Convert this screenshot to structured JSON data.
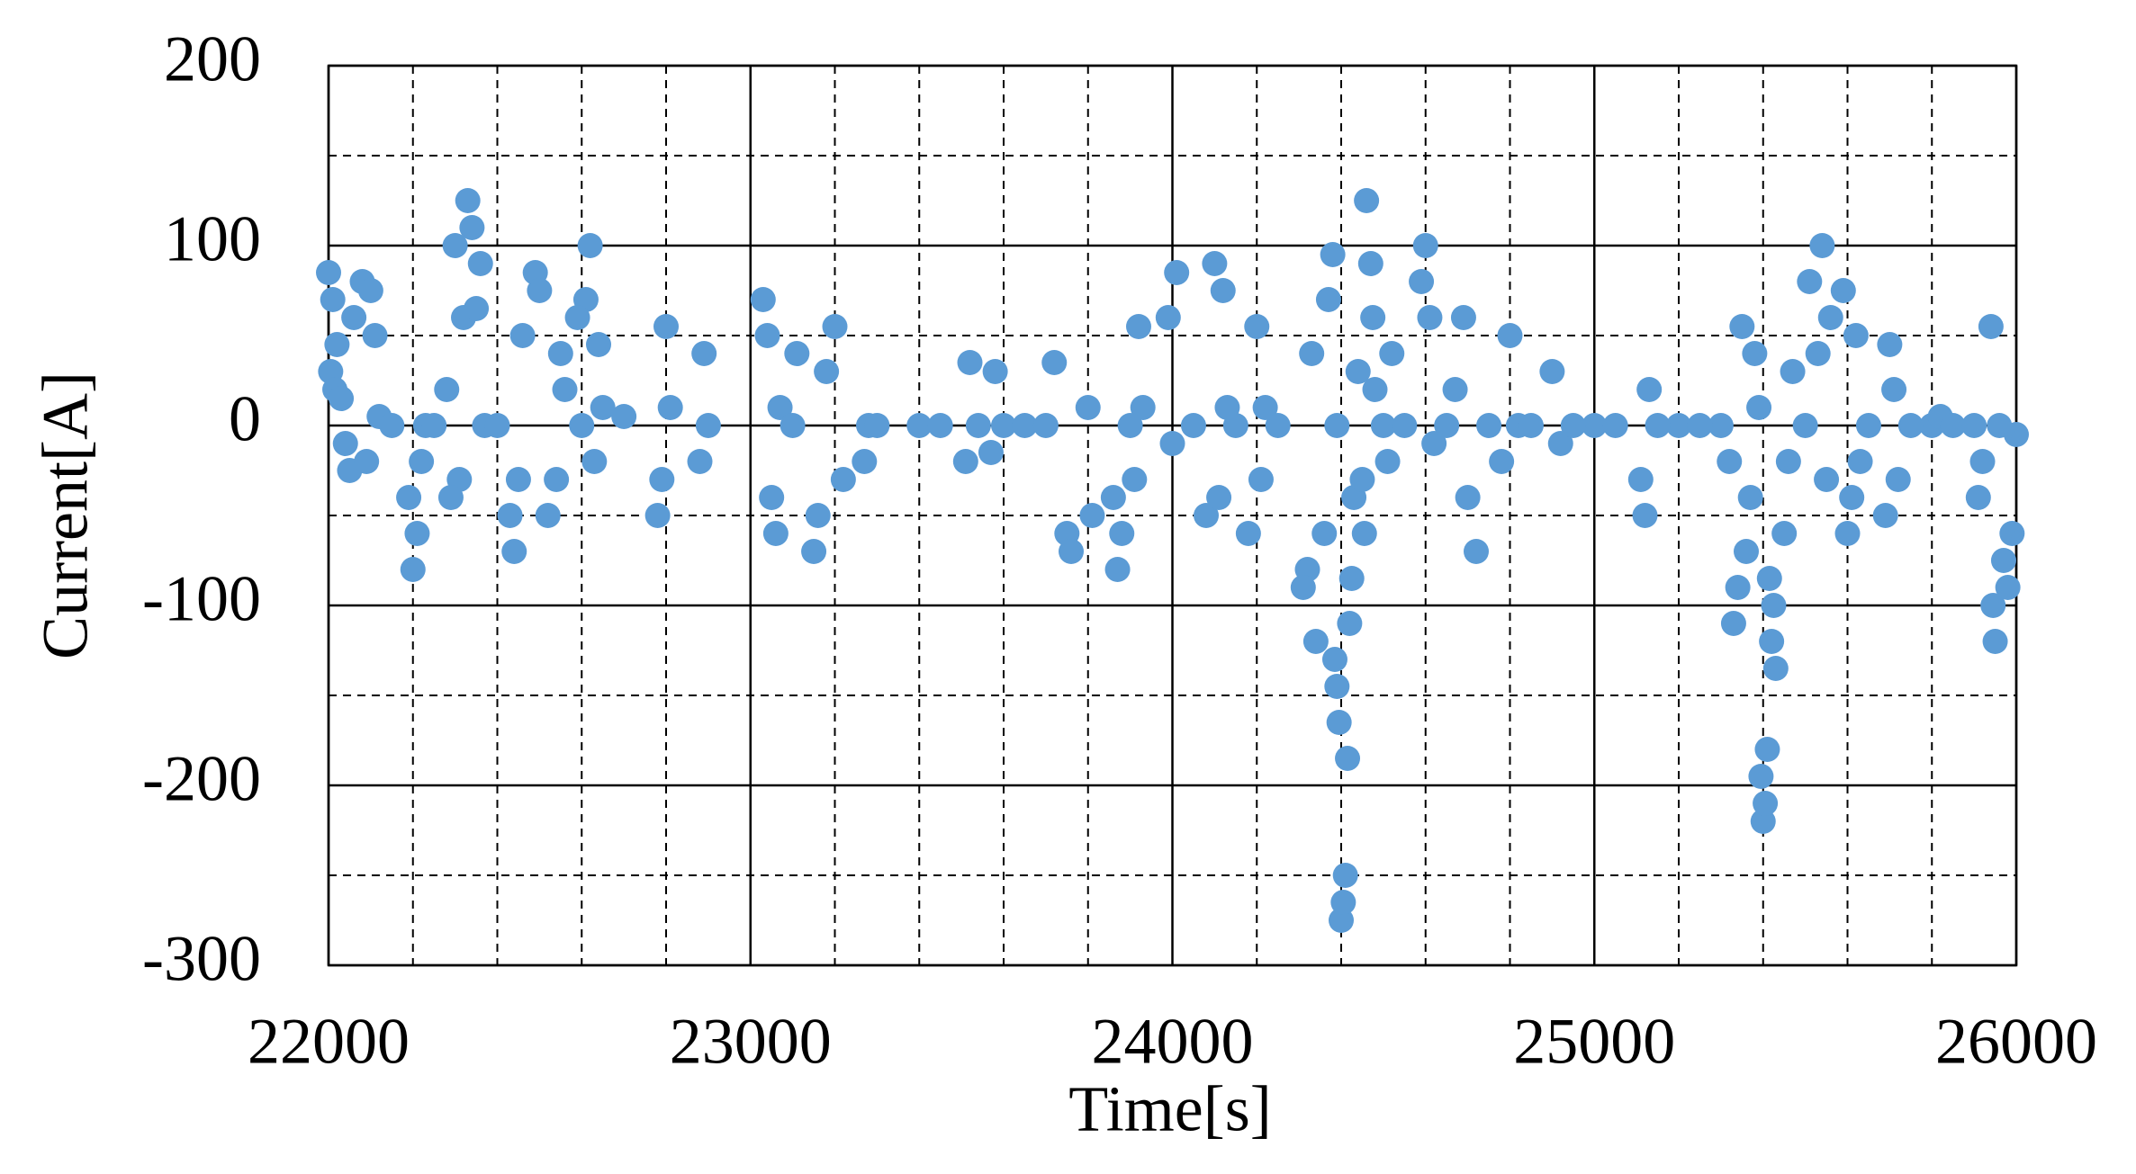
{
  "chart_data": {
    "type": "scatter",
    "xlabel": "Time[s]",
    "ylabel": "Current[A]",
    "xlim": [
      22000,
      26000
    ],
    "xticks": [
      22000,
      23000,
      24000,
      25000,
      26000
    ],
    "ylim": [
      -300,
      200
    ],
    "yticks": [
      -300,
      -200,
      -100,
      0,
      100,
      200
    ],
    "x_minor_ticks": [
      22200,
      22400,
      22600,
      22800,
      23200,
      23400,
      23600,
      23800,
      24200,
      24400,
      24600,
      24800,
      25200,
      25400,
      25600,
      25800
    ],
    "y_minor_ticks": [
      -250,
      -150,
      -50,
      50,
      150
    ],
    "grid": true,
    "color": "#5b9bd5",
    "x": [
      22000,
      22010,
      22020,
      22005,
      22015,
      22030,
      22040,
      22050,
      22060,
      22080,
      22100,
      22110,
      22090,
      22120,
      22200,
      22210,
      22190,
      22220,
      22230,
      22280,
      22300,
      22330,
      22340,
      22320,
      22310,
      22290,
      22360,
      22350,
      22370,
      22440,
      22430,
      22450,
      22460,
      22490,
      22500,
      22520,
      22540,
      22550,
      22560,
      22620,
      22610,
      22590,
      22640,
      22630,
      22650,
      22700,
      22800,
      22780,
      22790,
      22810,
      22890,
      22880,
      23030,
      23040,
      23050,
      23060,
      23070,
      23110,
      23150,
      23160,
      23180,
      23200,
      23220,
      23280,
      23270,
      23400,
      23520,
      23510,
      23540,
      23580,
      23570,
      23720,
      23750,
      23760,
      23800,
      23810,
      23870,
      23880,
      23860,
      23920,
      23910,
      23930,
      24010,
      23990,
      24000,
      24050,
      24080,
      24100,
      24120,
      24110,
      24130,
      24200,
      24180,
      24210,
      24220,
      24330,
      24320,
      24340,
      24310,
      24380,
      24370,
      24360,
      24390,
      24400,
      24405,
      24410,
      24415,
      24395,
      24390,
      24385,
      24420,
      24425,
      24430,
      24440,
      24460,
      24470,
      24475,
      24480,
      24455,
      24450,
      24520,
      24500,
      24510,
      24600,
      24590,
      24610,
      24620,
      24690,
      24670,
      24700,
      24720,
      24800,
      24780,
      24820,
      24900,
      24920,
      25000,
      25130,
      25120,
      25110,
      25200,
      25300,
      25320,
      25350,
      25330,
      25340,
      25360,
      25370,
      25400,
      25405,
      25395,
      25410,
      25430,
      25420,
      25425,
      25415,
      25380,
      25390,
      25450,
      25460,
      25470,
      25540,
      25510,
      25560,
      25530,
      25550,
      25590,
      25620,
      25600,
      25610,
      25630,
      25700,
      25710,
      25690,
      25720,
      25800,
      25820,
      25940,
      25920,
      25910,
      25950,
      25945,
      25980,
      25970,
      25990,
      25960,
      26000,
      22150,
      22250,
      22400,
      22600,
      22900,
      23100,
      23300,
      23450,
      23600,
      23650,
      23700,
      23900,
      24150,
      24250,
      24550,
      24650,
      24750,
      24850,
      24950,
      25050,
      25150,
      25250,
      25500,
      25650,
      25750,
      25850,
      25900
    ],
    "values": [
      85,
      70,
      45,
      30,
      20,
      15,
      -10,
      -25,
      60,
      80,
      75,
      50,
      -20,
      5,
      -80,
      -60,
      -40,
      -20,
      0,
      20,
      100,
      125,
      110,
      60,
      -30,
      -40,
      90,
      65,
      0,
      -70,
      -50,
      -30,
      50,
      85,
      75,
      -50,
      -30,
      40,
      20,
      100,
      70,
      60,
      45,
      -20,
      10,
      5,
      55,
      -50,
      -30,
      10,
      40,
      -20,
      70,
      50,
      -40,
      -60,
      10,
      40,
      -70,
      -50,
      30,
      55,
      -30,
      0,
      -20,
      0,
      35,
      -20,
      0,
      30,
      -15,
      35,
      -60,
      -70,
      10,
      -50,
      -80,
      -60,
      -40,
      55,
      -30,
      10,
      85,
      60,
      -10,
      0,
      -50,
      90,
      75,
      -40,
      10,
      55,
      -60,
      -30,
      10,
      40,
      -80,
      -120,
      -90,
      95,
      70,
      -60,
      0,
      -275,
      -265,
      -250,
      -185,
      -165,
      -145,
      -130,
      -110,
      -85,
      -40,
      30,
      125,
      90,
      60,
      20,
      -60,
      -30,
      40,
      0,
      -20,
      100,
      80,
      60,
      -10,
      60,
      20,
      -40,
      -70,
      50,
      -20,
      0,
      30,
      -10,
      0,
      20,
      -50,
      -30,
      0,
      0,
      -20,
      55,
      -110,
      -90,
      -70,
      -40,
      -220,
      -210,
      -195,
      -180,
      -135,
      -120,
      -100,
      -85,
      40,
      10,
      -60,
      -20,
      30,
      100,
      80,
      60,
      40,
      -30,
      75,
      50,
      -60,
      -40,
      -20,
      45,
      20,
      -50,
      -30,
      0,
      5,
      55,
      -20,
      -40,
      -120,
      -100,
      -90,
      -75,
      -60,
      0,
      -5,
      0,
      0,
      0,
      0,
      0,
      0,
      0,
      0,
      0,
      0,
      0,
      0,
      0,
      0,
      0,
      0,
      0,
      0,
      0,
      0,
      0,
      0,
      0,
      0,
      0,
      0,
      0
    ]
  }
}
